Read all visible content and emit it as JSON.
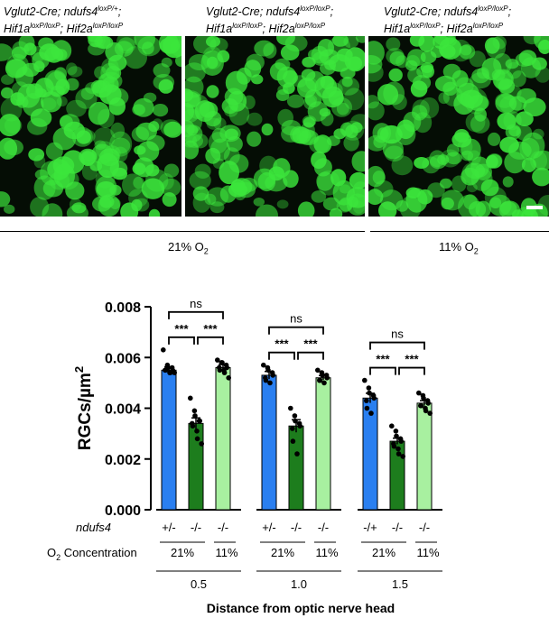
{
  "panels": [
    {
      "genotype_line1": "Vglut2-Cre; ndufs4",
      "sup1": "loxP/+",
      "line1_suffix": ";",
      "hif1a_sup": "loxP/loxP",
      "hif2a_sup": "loxP/loxP"
    },
    {
      "genotype_line1": "Vglut2-Cre; ndufs4",
      "sup1": "loxP/loxP",
      "line1_suffix": ";",
      "hif1a_sup": "loxP/loxP",
      "hif2a_sup": "loxP/loxP"
    },
    {
      "genotype_line1": "Vglut2-Cre; ndufs4",
      "sup1": "loxP/loxP",
      "line1_suffix": ";",
      "hif1a_sup": "loxP/loxP",
      "hif2a_sup": "loxP/loxP"
    }
  ],
  "gene_hif1a": "Hif1a",
  "gene_hif2a": "Hif2a",
  "conditions": [
    {
      "label": "21% O",
      "sub": "2"
    },
    {
      "label": "11% O",
      "sub": "2"
    }
  ],
  "colors": {
    "blue": "#2a7ff0",
    "darkgreen": "#1d7d1d",
    "lightgreen": "#a8f0a0",
    "micro_green": "#3ce63c"
  },
  "chart_data": {
    "type": "bar",
    "ylabel_main": "RGCs/µm",
    "ylabel_sup": "2",
    "xlabel": "Distance from optic nerve head",
    "ylim": [
      0,
      0.008
    ],
    "yticks": [
      "0.000",
      "0.002",
      "0.004",
      "0.006",
      "0.008"
    ],
    "row_label_genotype": "ndufs4",
    "row_label_o2": "O",
    "row_label_o2_sub": "2",
    "row_label_o2_suffix": " Concentration",
    "groups": [
      {
        "distance": "0.5",
        "bars": [
          {
            "genotype": "+/-",
            "o2": "21%",
            "color": "blue",
            "mean": 0.0055,
            "sem": 0.00013,
            "points": [
              0.0063,
              0.0057,
              0.0056,
              0.0056,
              0.0055,
              0.0055,
              0.0055,
              0.0054,
              0.0054,
              0.0054
            ]
          },
          {
            "genotype": "-/-",
            "o2": "",
            "color": "darkgreen",
            "mean": 0.0034,
            "sem": 0.00022,
            "points": [
              0.0044,
              0.0039,
              0.0037,
              0.0035,
              0.0035,
              0.0034,
              0.0033,
              0.0031,
              0.0028,
              0.0026
            ]
          },
          {
            "genotype": "-/-",
            "o2": "11%",
            "color": "lightgreen",
            "mean": 0.0056,
            "sem": 0.00012,
            "points": [
              0.0059,
              0.0058,
              0.0058,
              0.0057,
              0.0056,
              0.0056,
              0.0055,
              0.0055,
              0.0054,
              0.0052
            ]
          }
        ],
        "significance": [
          {
            "label": "***"
          },
          {
            "label": "***"
          },
          {
            "label": "ns"
          }
        ]
      },
      {
        "distance": "1.0",
        "bars": [
          {
            "genotype": "+/-",
            "o2": "21%",
            "color": "blue",
            "mean": 0.0053,
            "sem": 0.00015,
            "points": [
              0.0057,
              0.0056,
              0.0055,
              0.0054,
              0.0053,
              0.0052,
              0.0051,
              0.005
            ]
          },
          {
            "genotype": "-/-",
            "o2": "",
            "color": "darkgreen",
            "mean": 0.0033,
            "sem": 0.00025,
            "points": [
              0.004,
              0.0037,
              0.0035,
              0.0034,
              0.0033,
              0.0032,
              0.0027,
              0.0022
            ]
          },
          {
            "genotype": "-/-",
            "o2": "11%",
            "color": "lightgreen",
            "mean": 0.0052,
            "sem": 9e-05,
            "points": [
              0.0055,
              0.0054,
              0.0053,
              0.0053,
              0.0052,
              0.0051,
              0.0051,
              0.005
            ]
          }
        ],
        "significance": [
          {
            "label": "***"
          },
          {
            "label": "***"
          },
          {
            "label": "ns"
          }
        ]
      },
      {
        "distance": "1.5",
        "bars": [
          {
            "genotype": "-/+",
            "o2": "21%",
            "color": "blue",
            "mean": 0.0044,
            "sem": 0.00019,
            "points": [
              0.0051,
              0.0048,
              0.0046,
              0.0045,
              0.0044,
              0.0043,
              0.004,
              0.0038
            ]
          },
          {
            "genotype": "-/-",
            "o2": "",
            "color": "darkgreen",
            "mean": 0.0027,
            "sem": 0.00012,
            "points": [
              0.0033,
              0.0031,
              0.0029,
              0.0028,
              0.0027,
              0.0026,
              0.0025,
              0.0024,
              0.0022,
              0.0021
            ]
          },
          {
            "genotype": "-/-",
            "o2": "11%",
            "color": "lightgreen",
            "mean": 0.0042,
            "sem": 0.0001,
            "points": [
              0.0046,
              0.0045,
              0.0044,
              0.0043,
              0.0042,
              0.0041,
              0.0041,
              0.004,
              0.0039,
              0.0038
            ]
          }
        ],
        "significance": [
          {
            "label": "***"
          },
          {
            "label": "***"
          },
          {
            "label": "ns"
          }
        ]
      }
    ]
  }
}
